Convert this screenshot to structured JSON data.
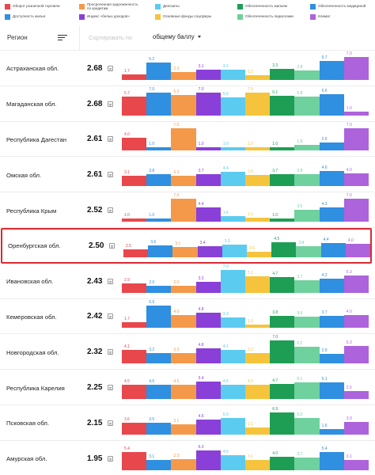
{
  "legend": [
    {
      "label": "Оборот розничной торговли",
      "color": "#e8474c"
    },
    {
      "label": "Просроченная задолженность по кредитам",
      "color": "#f4994a"
    },
    {
      "label": "Депозиты",
      "color": "#5ccbf0"
    },
    {
      "label": "Обеспеченность жильем",
      "color": "#1e9e55"
    },
    {
      "label": "Обеспеченность медициной",
      "color": "#2f8fe0"
    },
    {
      "label": "Доступность жилья",
      "color": "#2f8fe0"
    },
    {
      "label": "Индекс «белых доходов»",
      "color": "#8a3fd8"
    },
    {
      "label": "Основные фонды соцсферы",
      "color": "#f5c43c"
    },
    {
      "label": "Обеспеченность педагогами",
      "color": "#6fd19e"
    },
    {
      "label": "Климат",
      "color": "#ad63dc"
    }
  ],
  "header": {
    "region_label": "Регион",
    "sort_placeholder": "Сортировать по",
    "sort_value": "общему баллу"
  },
  "bar_colors": [
    "#e8474c",
    "#2f8fe0",
    "#f4994a",
    "#8a3fd8",
    "#5ccbf0",
    "#f5c43c",
    "#1e9e55",
    "#6fd19e",
    "#2f8fe0",
    "#ad63dc"
  ],
  "rows": [
    {
      "name": "Астраханская обл.",
      "score": "2.68",
      "values": [
        1.7,
        5.2,
        2.3,
        3.1,
        3.2,
        1.5,
        3.3,
        2.8,
        5.7,
        7.0
      ]
    },
    {
      "name": "Магаданская обл.",
      "score": "2.68",
      "values": [
        5.7,
        7.0,
        6.2,
        7.0,
        5.6,
        7.0,
        6.1,
        5.8,
        6.6,
        1.0
      ]
    },
    {
      "name": "Республика Дагестан",
      "score": "2.61",
      "values": [
        4.0,
        1.0,
        7.0,
        1.0,
        1.0,
        1.0,
        1.0,
        1.8,
        2.6,
        7.0
      ]
    },
    {
      "name": "Омская обл.",
      "score": "2.61",
      "values": [
        3.1,
        3.8,
        3.3,
        3.7,
        4.4,
        3.5,
        3.7,
        3.8,
        4.6,
        4.0
      ]
    },
    {
      "name": "Республика Крым",
      "score": "2.52",
      "values": [
        1.0,
        1.0,
        7.0,
        4.4,
        1.6,
        1.1,
        1.0,
        3.6,
        4.3,
        7.0
      ]
    },
    {
      "name": "Оренбургская обл.",
      "score": "2.50",
      "values": [
        2.5,
        3.6,
        3.1,
        3.4,
        3.9,
        1.6,
        4.5,
        3.4,
        4.4,
        4.0
      ],
      "highlight": true
    },
    {
      "name": "Ивановская обл.",
      "score": "2.43",
      "values": [
        2.9,
        2.0,
        2.0,
        3.2,
        7.0,
        5.1,
        4.7,
        3.7,
        4.2,
        5.3
      ]
    },
    {
      "name": "Кемеровская обл.",
      "score": "2.42",
      "values": [
        1.7,
        6.9,
        4.0,
        4.8,
        3.3,
        1.0,
        3.8,
        3.6,
        3.7,
        4.0
      ]
    },
    {
      "name": "Новгородская обл.",
      "score": "2.32",
      "values": [
        4.1,
        3.2,
        3.3,
        4.8,
        4.1,
        3.2,
        7.0,
        5.2,
        2.9,
        5.3
      ]
    },
    {
      "name": "Республика Карелия",
      "score": "2.25",
      "values": [
        4.5,
        4.5,
        4.5,
        5.4,
        4.5,
        4.5,
        4.7,
        5.1,
        5.1,
        2.5
      ]
    },
    {
      "name": "Псковская обл.",
      "score": "2.15",
      "values": [
        3.6,
        3.5,
        3.1,
        4.6,
        5.0,
        2.1,
        6.9,
        5.0,
        1.6,
        3.9
      ]
    },
    {
      "name": "Амурская обл.",
      "score": "1.95",
      "values": [
        5.4,
        3.1,
        3.3,
        6.0,
        4.6,
        3.1,
        4.0,
        3.7,
        5.4,
        3.1
      ]
    }
  ]
}
